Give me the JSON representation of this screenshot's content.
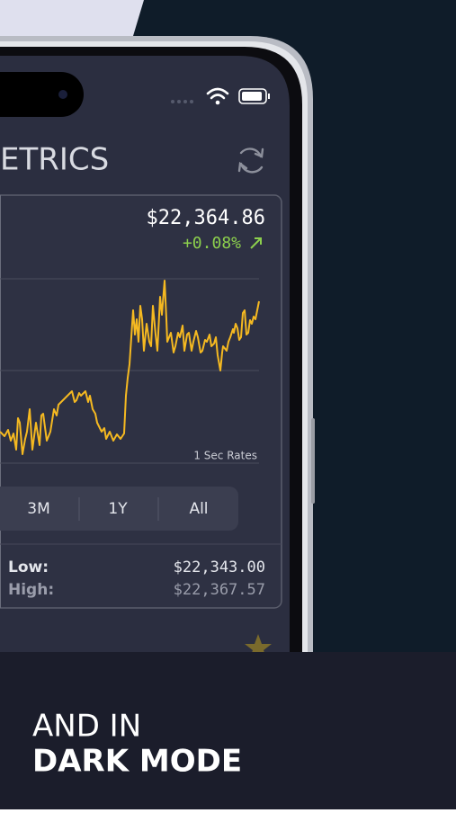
{
  "app": {
    "screen_title": "ETRICS",
    "price": "$22,364.86",
    "change": "+0.08%",
    "rate_label": "1 Sec Rates",
    "ranges": [
      "3M",
      "1Y",
      "All"
    ],
    "stats": [
      {
        "label": "Low:",
        "value": "$22,343.00"
      },
      {
        "label": "High:",
        "value": "$22,367.57"
      }
    ]
  },
  "caption": {
    "line1": "AND IN",
    "line2": "DARK MODE"
  }
}
